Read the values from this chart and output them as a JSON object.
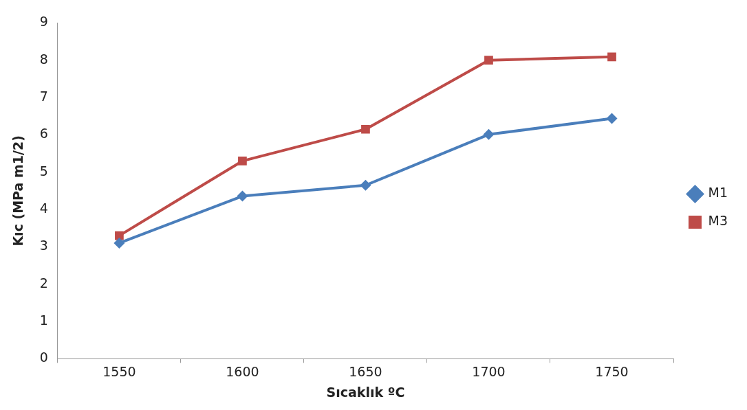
{
  "chart_data": {
    "type": "line",
    "xlabel": "Sıcaklık ºC",
    "ylabel": "Kıc (MPa m1/2)",
    "categories": [
      "1550",
      "1600",
      "1650",
      "1700",
      "1750"
    ],
    "series": [
      {
        "name": "M1",
        "color": "#4a7ebb",
        "marker": "diamond",
        "values": [
          3.1,
          4.36,
          4.65,
          6.01,
          6.44
        ]
      },
      {
        "name": "M3",
        "color": "#be4b48",
        "marker": "square",
        "values": [
          3.3,
          5.3,
          6.15,
          8.0,
          8.09
        ]
      }
    ],
    "ylim": [
      0,
      9
    ],
    "yticks": [
      0,
      1,
      2,
      3,
      4,
      5,
      6,
      7,
      8,
      9
    ],
    "grid": false,
    "legend": "right",
    "line_style": "solid"
  }
}
